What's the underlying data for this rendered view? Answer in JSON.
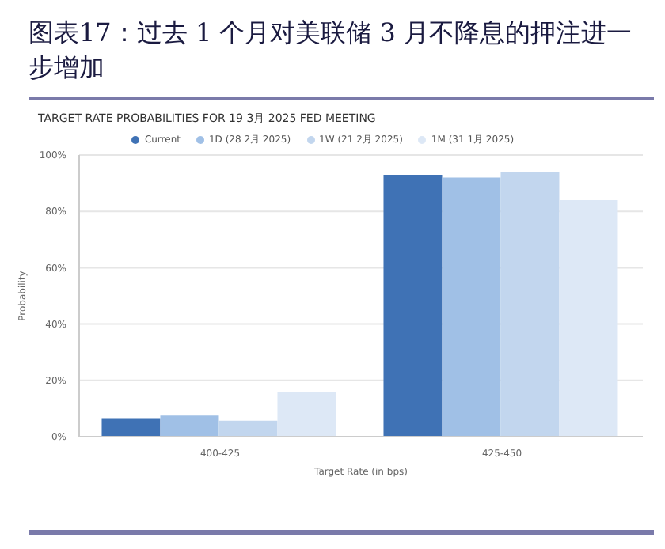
{
  "chart_data": {
    "type": "bar",
    "title": "图表17：过去 1 个月对美联储 3 月不降息的押注进一步增加",
    "subtitle": "TARGET RATE PROBABILITIES FOR 19 3月 2025 FED MEETING",
    "xlabel": "Target Rate (in bps)",
    "ylabel": "Probability",
    "categories": [
      "400-425",
      "425-450"
    ],
    "series": [
      {
        "name": "Current",
        "color": "#3f72b5",
        "values": [
          6.3,
          93
        ]
      },
      {
        "name": "1D (28 2月 2025)",
        "color": "#a0c0e6",
        "values": [
          7.5,
          92
        ]
      },
      {
        "name": "1W (21 2月 2025)",
        "color": "#c2d6ee",
        "values": [
          5.7,
          94
        ]
      },
      {
        "name": "1M (31 1月 2025)",
        "color": "#dde8f6",
        "values": [
          16,
          84
        ]
      }
    ],
    "ylim": [
      0,
      100
    ],
    "yticks": [
      {
        "value": 0,
        "label": "0%"
      },
      {
        "value": 20,
        "label": "20%"
      },
      {
        "value": 40,
        "label": "40%"
      },
      {
        "value": 60,
        "label": "60%"
      },
      {
        "value": 80,
        "label": "80%"
      },
      {
        "value": 100,
        "label": "100%"
      }
    ],
    "grid": "y",
    "legend": "top"
  }
}
